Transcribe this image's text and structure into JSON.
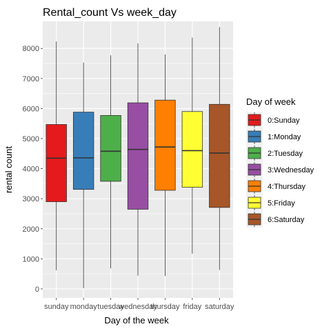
{
  "chart_data": {
    "type": "boxplot",
    "title": "Rental_count Vs week_day",
    "xlabel": "Day of the week",
    "ylabel": "rental count",
    "ylim": [
      -300,
      8900
    ],
    "yticks": [
      0,
      1000,
      2000,
      3000,
      4000,
      5000,
      6000,
      7000,
      8000
    ],
    "categories": [
      "sunday",
      "monday",
      "tuesday",
      "wednesday",
      "thursday",
      "friday",
      "saturday"
    ],
    "boxes": [
      {
        "category": "sunday",
        "min": 620,
        "q1": 2900,
        "median": 4350,
        "q3": 5470,
        "max": 8230
      },
      {
        "category": "monday",
        "min": 20,
        "q1": 3310,
        "median": 4360,
        "q3": 5880,
        "max": 7530
      },
      {
        "category": "tuesday",
        "min": 680,
        "q1": 3580,
        "median": 4580,
        "q3": 5770,
        "max": 7770
      },
      {
        "category": "wednesday",
        "min": 440,
        "q1": 2650,
        "median": 4640,
        "q3": 6190,
        "max": 8170
      },
      {
        "category": "thursday",
        "min": 430,
        "q1": 3280,
        "median": 4720,
        "q3": 6280,
        "max": 7800
      },
      {
        "category": "friday",
        "min": 1170,
        "q1": 3380,
        "median": 4600,
        "q3": 5900,
        "max": 8360
      },
      {
        "category": "saturday",
        "min": 630,
        "q1": 2710,
        "median": 4520,
        "q3": 6140,
        "max": 8710
      }
    ],
    "legend": {
      "title": "Day of week",
      "position": "right",
      "entries": [
        {
          "label": "0:Sunday",
          "color": "#E41A1C"
        },
        {
          "label": "1:Monday",
          "color": "#377EB8"
        },
        {
          "label": "2:Tuesday",
          "color": "#4DAF4A"
        },
        {
          "label": "3:Wednesday",
          "color": "#984EA3"
        },
        {
          "label": "4:Thursday",
          "color": "#FF7F00"
        },
        {
          "label": "5:Friday",
          "color": "#FFFF33"
        },
        {
          "label": "6:Saturday",
          "color": "#A65628"
        }
      ]
    },
    "panel_background": "#EBEBEB",
    "grid": true
  }
}
